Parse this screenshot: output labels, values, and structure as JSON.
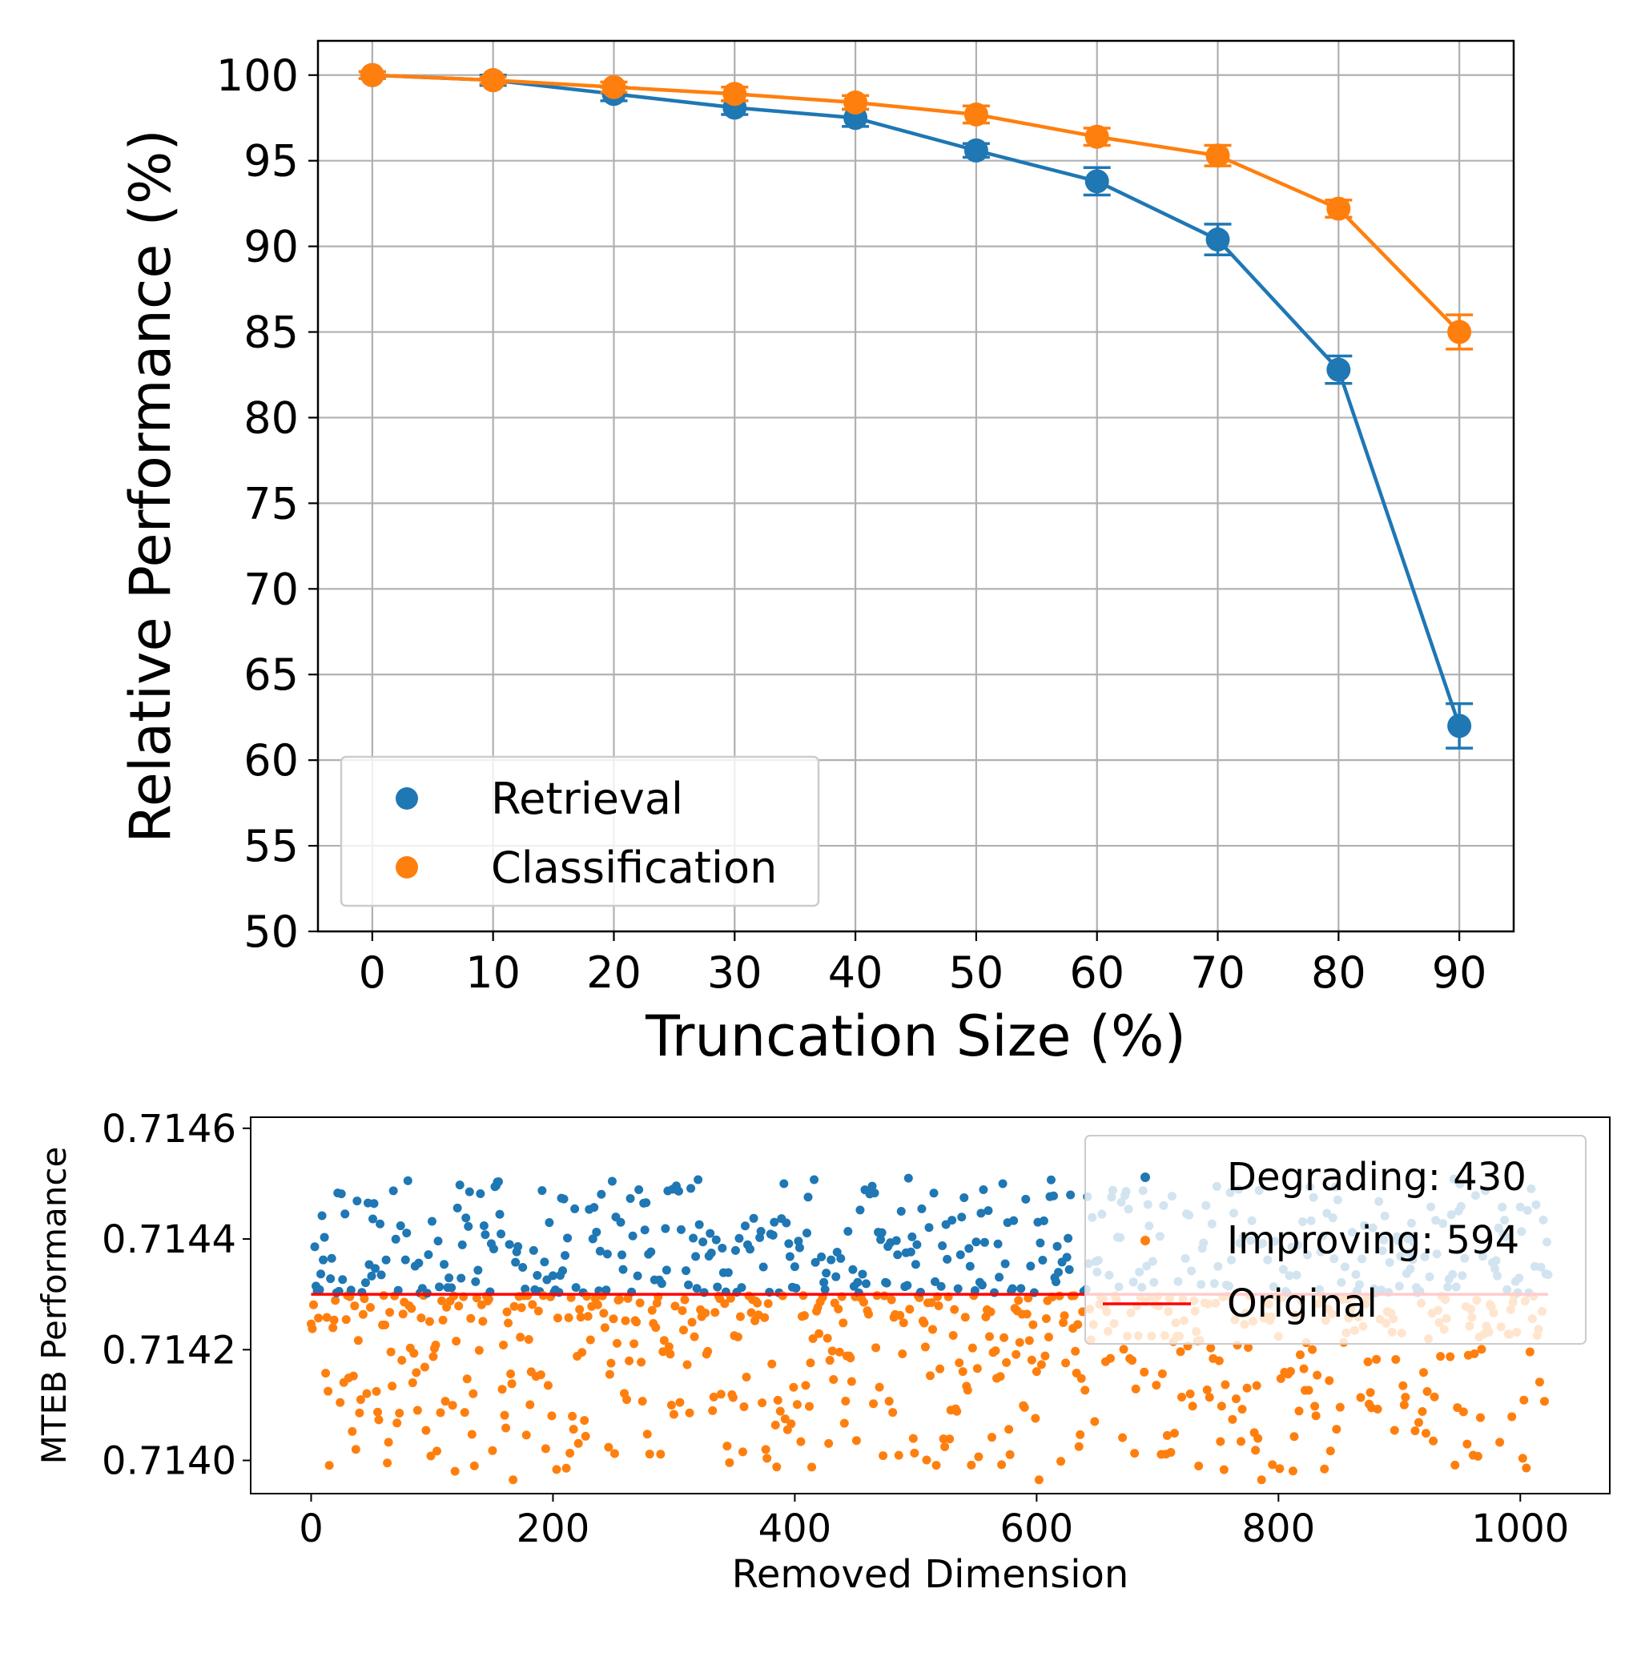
{
  "chart_data": [
    {
      "type": "line",
      "title": "",
      "xlabel": "Truncation Size (%)",
      "ylabel": "Relative Performance (%)",
      "x": [
        0,
        10,
        20,
        30,
        40,
        50,
        60,
        70,
        80,
        90
      ],
      "xlim": [
        -4.5,
        94.5
      ],
      "ylim": [
        50,
        102
      ],
      "xticks": [
        "0",
        "10",
        "20",
        "30",
        "40",
        "50",
        "60",
        "70",
        "80",
        "90"
      ],
      "yticks": [
        "50",
        "55",
        "60",
        "65",
        "70",
        "75",
        "80",
        "85",
        "90",
        "95",
        "100"
      ],
      "grid": true,
      "legend_position": "lower-left",
      "series": [
        {
          "name": "Retrieval",
          "color": "#1f77b4",
          "values": [
            100,
            99.7,
            98.9,
            98.1,
            97.5,
            95.6,
            93.8,
            90.4,
            82.8,
            62.0
          ],
          "error": [
            0.2,
            0.3,
            0.4,
            0.4,
            0.5,
            0.4,
            0.8,
            0.9,
            0.8,
            1.3
          ]
        },
        {
          "name": "Classification",
          "color": "#ff7f0e",
          "values": [
            100,
            99.7,
            99.3,
            98.9,
            98.4,
            97.7,
            96.4,
            95.3,
            92.2,
            85.0
          ],
          "error": [
            0.2,
            0.2,
            0.3,
            0.4,
            0.4,
            0.5,
            0.5,
            0.6,
            0.5,
            1.0
          ]
        }
      ]
    },
    {
      "type": "scatter",
      "title": "",
      "xlabel": "Removed Dimension",
      "ylabel": "MTEB Performance",
      "xlim": [
        -50,
        1074
      ],
      "ylim": [
        0.71394,
        0.71462
      ],
      "xticks": [
        "0",
        "200",
        "400",
        "600",
        "800",
        "1000"
      ],
      "yticks": [
        "0.7140",
        "0.7142",
        "0.7144",
        "0.7146"
      ],
      "grid": false,
      "legend_position": "upper-right",
      "n_points": 1024,
      "original_value": 0.7143,
      "series": [
        {
          "name": "Degrading: 430",
          "color": "#1f77b4"
        },
        {
          "name": "Improving: 594",
          "color": "#ff7f0e"
        },
        {
          "name": "Original",
          "color": "#ff0000"
        }
      ]
    }
  ]
}
